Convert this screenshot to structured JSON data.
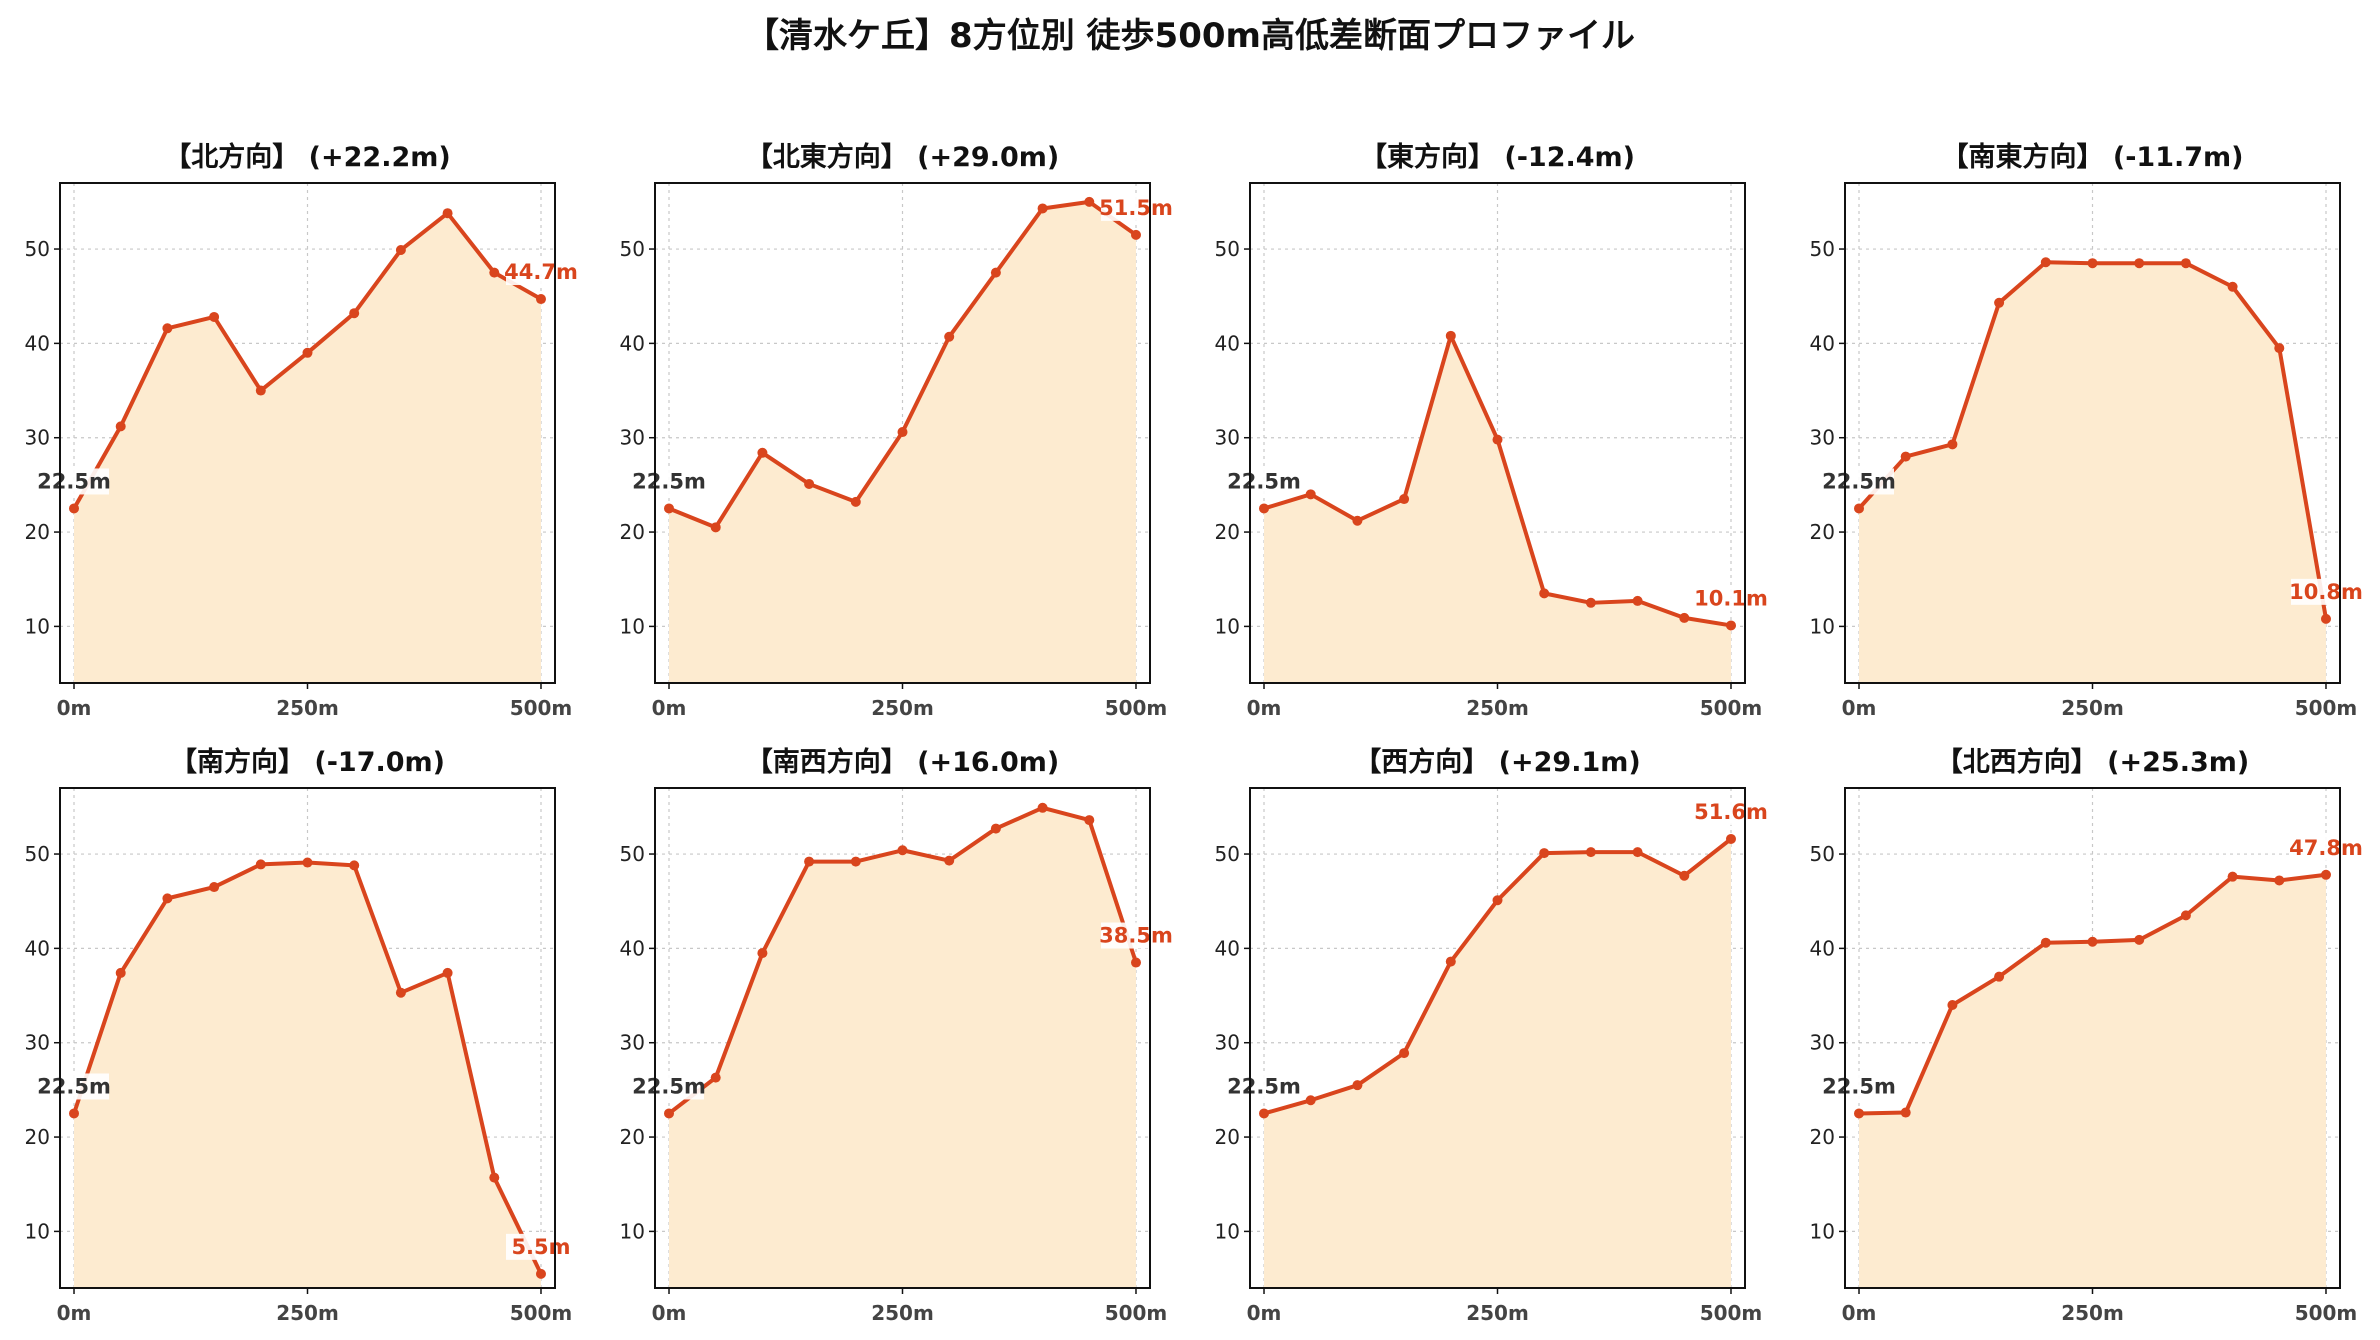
{
  "title": "【清水ケ丘】8方位別 徒歩500m高低差断面プロファイル",
  "colors": {
    "line": "#d9451d",
    "fill": "#fdebd0",
    "grid": "#c8c8c8",
    "start_label": "#333333",
    "end_label": "#d9451d"
  },
  "chart_data": [
    {
      "type": "area",
      "title": "【北方向】 (+22.2m)",
      "x": [
        0,
        50,
        100,
        150,
        200,
        250,
        300,
        350,
        400,
        450,
        500
      ],
      "y": [
        22.5,
        31.2,
        41.6,
        42.8,
        35.0,
        39.0,
        43.2,
        49.9,
        53.8,
        47.5,
        44.7
      ],
      "start_label": "22.5m",
      "end_label": "44.7m",
      "xticks": [
        "0m",
        "250m",
        "500m"
      ],
      "yticks": [
        10,
        20,
        30,
        40,
        50
      ],
      "xlim": [
        -15,
        515
      ],
      "ylim": [
        4,
        57
      ],
      "grid": true
    },
    {
      "type": "area",
      "title": "【北東方向】 (+29.0m)",
      "x": [
        0,
        50,
        100,
        150,
        200,
        250,
        300,
        350,
        400,
        450,
        500
      ],
      "y": [
        22.5,
        20.5,
        28.4,
        25.1,
        23.2,
        30.6,
        40.7,
        47.5,
        54.3,
        55.0,
        51.5
      ],
      "start_label": "22.5m",
      "end_label": "51.5m",
      "xticks": [
        "0m",
        "250m",
        "500m"
      ],
      "yticks": [
        10,
        20,
        30,
        40,
        50
      ],
      "xlim": [
        -15,
        515
      ],
      "ylim": [
        4,
        57
      ],
      "grid": true
    },
    {
      "type": "area",
      "title": "【東方向】 (-12.4m)",
      "x": [
        0,
        50,
        100,
        150,
        200,
        250,
        300,
        350,
        400,
        450,
        500
      ],
      "y": [
        22.5,
        24.0,
        21.2,
        23.5,
        40.8,
        29.8,
        13.5,
        12.5,
        12.7,
        10.9,
        10.1
      ],
      "start_label": "22.5m",
      "end_label": "10.1m",
      "xticks": [
        "0m",
        "250m",
        "500m"
      ],
      "yticks": [
        10,
        20,
        30,
        40,
        50
      ],
      "xlim": [
        -15,
        515
      ],
      "ylim": [
        4,
        57
      ],
      "grid": true
    },
    {
      "type": "area",
      "title": "【南東方向】 (-11.7m)",
      "x": [
        0,
        50,
        100,
        150,
        200,
        250,
        300,
        350,
        400,
        450,
        500
      ],
      "y": [
        22.5,
        28.0,
        29.3,
        44.3,
        48.6,
        48.5,
        48.5,
        48.5,
        46.0,
        39.5,
        10.8
      ],
      "start_label": "22.5m",
      "end_label": "10.8m",
      "xticks": [
        "0m",
        "250m",
        "500m"
      ],
      "yticks": [
        10,
        20,
        30,
        40,
        50
      ],
      "xlim": [
        -15,
        515
      ],
      "ylim": [
        4,
        57
      ],
      "grid": true
    },
    {
      "type": "area",
      "title": "【南方向】 (-17.0m)",
      "x": [
        0,
        50,
        100,
        150,
        200,
        250,
        300,
        350,
        400,
        450,
        500
      ],
      "y": [
        22.5,
        37.4,
        45.3,
        46.5,
        48.9,
        49.1,
        48.8,
        35.3,
        37.4,
        15.7,
        5.5
      ],
      "start_label": "22.5m",
      "end_label": "5.5m",
      "xticks": [
        "0m",
        "250m",
        "500m"
      ],
      "yticks": [
        10,
        20,
        30,
        40,
        50
      ],
      "xlim": [
        -15,
        515
      ],
      "ylim": [
        4,
        57
      ],
      "grid": true
    },
    {
      "type": "area",
      "title": "【南西方向】 (+16.0m)",
      "x": [
        0,
        50,
        100,
        150,
        200,
        250,
        300,
        350,
        400,
        450,
        500
      ],
      "y": [
        22.5,
        26.3,
        39.5,
        49.2,
        49.2,
        50.4,
        49.3,
        52.7,
        54.9,
        53.6,
        38.5
      ],
      "start_label": "22.5m",
      "end_label": "38.5m",
      "xticks": [
        "0m",
        "250m",
        "500m"
      ],
      "yticks": [
        10,
        20,
        30,
        40,
        50
      ],
      "xlim": [
        -15,
        515
      ],
      "ylim": [
        4,
        57
      ],
      "grid": true
    },
    {
      "type": "area",
      "title": "【西方向】 (+29.1m)",
      "x": [
        0,
        50,
        100,
        150,
        200,
        250,
        300,
        350,
        400,
        450,
        500
      ],
      "y": [
        22.5,
        23.9,
        25.5,
        28.9,
        38.6,
        45.1,
        50.1,
        50.2,
        50.2,
        47.7,
        51.6
      ],
      "start_label": "22.5m",
      "end_label": "51.6m",
      "xticks": [
        "0m",
        "250m",
        "500m"
      ],
      "yticks": [
        10,
        20,
        30,
        40,
        50
      ],
      "xlim": [
        -15,
        515
      ],
      "ylim": [
        4,
        57
      ],
      "grid": true
    },
    {
      "type": "area",
      "title": "【北西方向】 (+25.3m)",
      "x": [
        0,
        50,
        100,
        150,
        200,
        250,
        300,
        350,
        400,
        450,
        500
      ],
      "y": [
        22.5,
        22.6,
        34.0,
        37.0,
        40.6,
        40.7,
        40.9,
        43.5,
        47.6,
        47.2,
        47.8
      ],
      "start_label": "22.5m",
      "end_label": "47.8m",
      "xticks": [
        "0m",
        "250m",
        "500m"
      ],
      "yticks": [
        10,
        20,
        30,
        40,
        50
      ],
      "xlim": [
        -15,
        515
      ],
      "ylim": [
        4,
        57
      ],
      "grid": true
    }
  ]
}
